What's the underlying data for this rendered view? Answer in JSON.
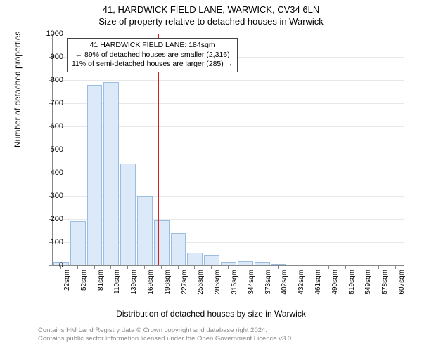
{
  "title": "41, HARDWICK FIELD LANE, WARWICK, CV34 6LN",
  "subtitle": "Size of property relative to detached houses in Warwick",
  "ylabel": "Number of detached properties",
  "xlabel": "Distribution of detached houses by size in Warwick",
  "credit1": "Contains HM Land Registry data © Crown copyright and database right 2024.",
  "credit2": "Contains public sector information licensed under the Open Government Licence v3.0.",
  "annotation": {
    "line1": "41 HARDWICK FIELD LANE: 184sqm",
    "line2": "← 89% of detached houses are smaller (2,316)",
    "line3": "11% of semi-detached houses are larger (285) →"
  },
  "chart": {
    "type": "histogram",
    "ylim": [
      0,
      1000
    ],
    "ytick_step": 100,
    "vline_x": 184,
    "vline_x_min": 22,
    "vline_x_max": 607,
    "background_color": "#ffffff",
    "grid_color": "#e8e8e8",
    "axis_color": "#888888",
    "bar_fill": "#dce9f8",
    "bar_stroke": "#9abde0",
    "vline_color": "#d02020",
    "title_fontsize": 13,
    "label_fontsize": 12,
    "tick_fontsize": 11,
    "bars": [
      {
        "label": "22sqm",
        "value": 15
      },
      {
        "label": "52sqm",
        "value": 190
      },
      {
        "label": "81sqm",
        "value": 780
      },
      {
        "label": "110sqm",
        "value": 790
      },
      {
        "label": "139sqm",
        "value": 440
      },
      {
        "label": "169sqm",
        "value": 300
      },
      {
        "label": "198sqm",
        "value": 195
      },
      {
        "label": "227sqm",
        "value": 140
      },
      {
        "label": "256sqm",
        "value": 55
      },
      {
        "label": "285sqm",
        "value": 45
      },
      {
        "label": "315sqm",
        "value": 15
      },
      {
        "label": "344sqm",
        "value": 18
      },
      {
        "label": "373sqm",
        "value": 15
      },
      {
        "label": "402sqm",
        "value": 5
      },
      {
        "label": "432sqm",
        "value": 0
      },
      {
        "label": "461sqm",
        "value": 0
      },
      {
        "label": "490sqm",
        "value": 0
      },
      {
        "label": "519sqm",
        "value": 0
      },
      {
        "label": "549sqm",
        "value": 0
      },
      {
        "label": "578sqm",
        "value": 0
      },
      {
        "label": "607sqm",
        "value": 0
      }
    ]
  }
}
